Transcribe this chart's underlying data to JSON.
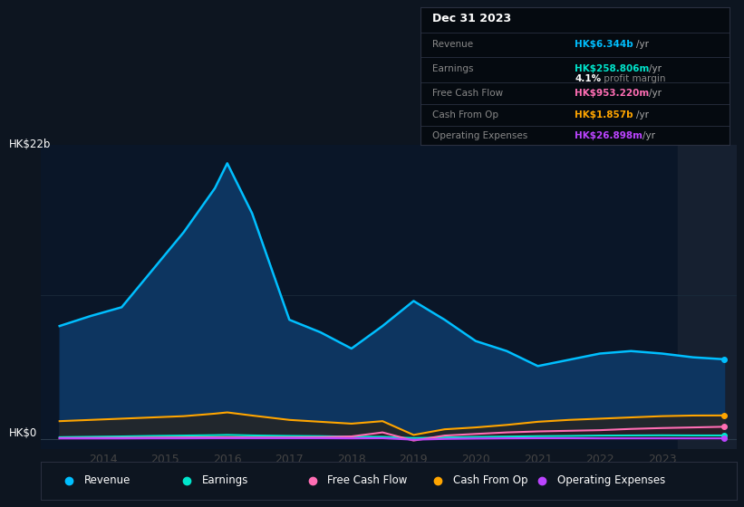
{
  "bg_color": "#0d1520",
  "plot_bg_color": "#0d1b2e",
  "chart_bg_darker": "#0a1628",
  "years": [
    2013.3,
    2013.8,
    2014.3,
    2014.8,
    2015.3,
    2015.8,
    2016.0,
    2016.4,
    2017.0,
    2017.5,
    2018.0,
    2018.5,
    2019.0,
    2019.5,
    2020.0,
    2020.5,
    2021.0,
    2021.5,
    2022.0,
    2022.5,
    2023.0,
    2023.5,
    2024.0
  ],
  "revenue": [
    9.0,
    9.8,
    10.5,
    13.5,
    16.5,
    20.0,
    22.0,
    18.0,
    9.5,
    8.5,
    7.2,
    9.0,
    11.0,
    9.5,
    7.8,
    7.0,
    5.8,
    6.3,
    6.8,
    7.0,
    6.8,
    6.5,
    6.344
  ],
  "earnings": [
    0.12,
    0.15,
    0.18,
    0.22,
    0.25,
    0.28,
    0.3,
    0.26,
    0.22,
    0.2,
    0.16,
    0.15,
    0.05,
    0.1,
    0.14,
    0.17,
    0.2,
    0.22,
    0.25,
    0.26,
    0.27,
    0.26,
    0.259
  ],
  "free_cash_flow": [
    0.05,
    0.06,
    0.07,
    0.09,
    0.1,
    0.11,
    0.12,
    0.1,
    0.1,
    0.12,
    0.18,
    0.5,
    -0.15,
    0.25,
    0.38,
    0.5,
    0.58,
    0.63,
    0.68,
    0.78,
    0.85,
    0.9,
    0.953
  ],
  "cash_from_op": [
    1.4,
    1.5,
    1.6,
    1.7,
    1.8,
    2.0,
    2.1,
    1.85,
    1.5,
    1.35,
    1.2,
    1.4,
    0.3,
    0.75,
    0.9,
    1.1,
    1.35,
    1.5,
    1.6,
    1.7,
    1.8,
    1.85,
    1.857
  ],
  "operating_expenses": [
    0.02,
    0.02,
    0.02,
    0.03,
    0.03,
    0.04,
    0.04,
    0.04,
    0.04,
    0.04,
    0.03,
    0.04,
    -0.08,
    -0.02,
    0.01,
    0.03,
    0.04,
    0.04,
    0.03,
    0.03,
    0.03,
    0.027,
    0.027
  ],
  "revenue_color": "#00bfff",
  "earnings_color": "#00e5cc",
  "free_cash_flow_color": "#ff6eb4",
  "cash_from_op_color": "#ffa500",
  "operating_expenses_color": "#bb44ff",
  "ylim_max": 23.5,
  "ylim_min": -0.8,
  "ylabel_top": "HK$22b",
  "ylabel_bottom": "HK$0",
  "xmin": 2013.0,
  "xmax": 2024.2,
  "xticks": [
    2014,
    2015,
    2016,
    2017,
    2018,
    2019,
    2020,
    2021,
    2022,
    2023
  ],
  "info_date": "Dec 31 2023",
  "info_revenue_label": "Revenue",
  "info_revenue_val": "HK$6.344b",
  "info_earnings_label": "Earnings",
  "info_earnings_val": "HK$258.806m",
  "info_margin_pct": "4.1%",
  "info_margin_text": " profit margin",
  "info_fcf_label": "Free Cash Flow",
  "info_fcf_val": "HK$953.220m",
  "info_cashop_label": "Cash From Op",
  "info_cashop_val": "HK$1.857b",
  "info_opex_label": "Operating Expenses",
  "info_opex_val": "HK$26.898m",
  "legend_items": [
    "Revenue",
    "Earnings",
    "Free Cash Flow",
    "Cash From Op",
    "Operating Expenses"
  ]
}
